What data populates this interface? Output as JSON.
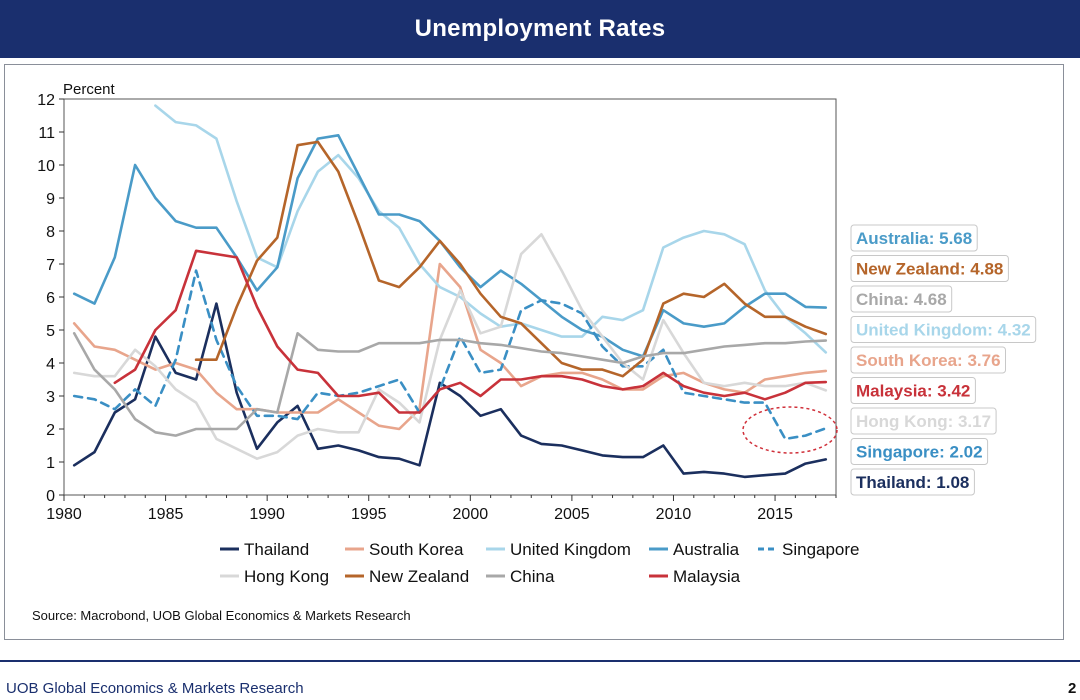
{
  "header": {
    "title": "Unemployment Rates"
  },
  "footer": {
    "text": "UOB Global Economics & Markets Research",
    "page_number": "2"
  },
  "chart_data": {
    "type": "line",
    "title": "Unemployment Rates",
    "ylabel": "Percent",
    "xlabel": "",
    "xlim": [
      1980,
      2018
    ],
    "ylim": [
      0,
      12
    ],
    "x_ticks": [
      "1980",
      "1985",
      "1990",
      "1995",
      "2000",
      "2005",
      "2010",
      "2015"
    ],
    "y_ticks": [
      "0",
      "1",
      "2",
      "3",
      "4",
      "5",
      "6",
      "7",
      "8",
      "9",
      "10",
      "11",
      "12"
    ],
    "source": "Source: Macrobond, UOB Global Economics & Markets Research",
    "series": [
      {
        "name": "Thailand",
        "color": "#1b2f5e",
        "dash": false,
        "x": [
          1980.5,
          1981.5,
          1982.5,
          1983.5,
          1984.5,
          1985.5,
          1986.5,
          1987.5,
          1988.5,
          1989.5,
          1990.5,
          1991.5,
          1992.5,
          1993.5,
          1994.5,
          1995.5,
          1996.5,
          1997.5,
          1998.5,
          1999.5,
          2000.5,
          2001.5,
          2002.5,
          2003.5,
          2004.5,
          2005.5,
          2006.5,
          2007.5,
          2008.5,
          2009.5,
          2010.5,
          2011.5,
          2012.5,
          2013.5,
          2014.5,
          2015.5,
          2016.5,
          2017.5
        ],
        "y": [
          0.9,
          1.3,
          2.5,
          2.9,
          4.8,
          3.7,
          3.5,
          5.8,
          3.1,
          1.4,
          2.2,
          2.7,
          1.4,
          1.5,
          1.35,
          1.15,
          1.1,
          0.9,
          3.4,
          3.0,
          2.4,
          2.6,
          1.8,
          1.55,
          1.5,
          1.35,
          1.2,
          1.15,
          1.15,
          1.5,
          0.65,
          0.7,
          0.65,
          0.55,
          0.6,
          0.65,
          0.95,
          1.08
        ]
      },
      {
        "name": "South Korea",
        "color": "#e8a58c",
        "dash": false,
        "x": [
          1980.5,
          1981.5,
          1982.5,
          1983.5,
          1984.5,
          1985.5,
          1986.5,
          1987.5,
          1988.5,
          1989.5,
          1990.5,
          1991.5,
          1992.5,
          1993.5,
          1994.5,
          1995.5,
          1996.5,
          1997.5,
          1998.5,
          1999.5,
          2000.5,
          2001.5,
          2002.5,
          2003.5,
          2004.5,
          2005.5,
          2006.5,
          2007.5,
          2008.5,
          2009.5,
          2010.5,
          2011.5,
          2012.5,
          2013.5,
          2014.5,
          2015.5,
          2016.5,
          2017.5
        ],
        "y": [
          5.2,
          4.5,
          4.4,
          4.1,
          3.8,
          4.0,
          3.8,
          3.1,
          2.6,
          2.6,
          2.5,
          2.5,
          2.5,
          2.9,
          2.5,
          2.1,
          2.0,
          2.6,
          7.0,
          6.3,
          4.4,
          4.0,
          3.3,
          3.6,
          3.7,
          3.7,
          3.5,
          3.2,
          3.2,
          3.6,
          3.7,
          3.4,
          3.2,
          3.1,
          3.5,
          3.6,
          3.7,
          3.76
        ]
      },
      {
        "name": "United Kingdom",
        "color": "#a8d6ea",
        "dash": false,
        "x": [
          1984.5,
          1985.5,
          1986.5,
          1987.5,
          1988.5,
          1989.5,
          1990.5,
          1991.5,
          1992.5,
          1993.5,
          1994.5,
          1995.5,
          1996.5,
          1997.5,
          1998.5,
          1999.5,
          2000.5,
          2001.5,
          2002.5,
          2003.5,
          2004.5,
          2005.5,
          2006.5,
          2007.5,
          2008.5,
          2009.5,
          2010.5,
          2011.5,
          2012.5,
          2013.5,
          2014.5,
          2015.5,
          2016.5,
          2017.5
        ],
        "y": [
          11.8,
          11.3,
          11.2,
          10.8,
          8.9,
          7.2,
          6.9,
          8.6,
          9.8,
          10.3,
          9.6,
          8.6,
          8.1,
          7.0,
          6.3,
          6.0,
          5.5,
          5.1,
          5.2,
          5.0,
          4.8,
          4.8,
          5.4,
          5.3,
          5.6,
          7.5,
          7.8,
          8.0,
          7.9,
          7.6,
          6.2,
          5.4,
          4.9,
          4.32
        ]
      },
      {
        "name": "Australia",
        "color": "#4a9bc8",
        "dash": false,
        "x": [
          1980.5,
          1981.5,
          1982.5,
          1983.5,
          1984.5,
          1985.5,
          1986.5,
          1987.5,
          1988.5,
          1989.5,
          1990.5,
          1991.5,
          1992.5,
          1993.5,
          1994.5,
          1995.5,
          1996.5,
          1997.5,
          1998.5,
          1999.5,
          2000.5,
          2001.5,
          2002.5,
          2003.5,
          2004.5,
          2005.5,
          2006.5,
          2007.5,
          2008.5,
          2009.5,
          2010.5,
          2011.5,
          2012.5,
          2013.5,
          2014.5,
          2015.5,
          2016.5,
          2017.5
        ],
        "y": [
          6.1,
          5.8,
          7.2,
          10.0,
          9.0,
          8.3,
          8.1,
          8.1,
          7.2,
          6.2,
          6.9,
          9.6,
          10.8,
          10.9,
          9.7,
          8.5,
          8.5,
          8.3,
          7.7,
          6.9,
          6.3,
          6.8,
          6.4,
          5.9,
          5.4,
          5.0,
          4.8,
          4.4,
          4.2,
          5.6,
          5.2,
          5.1,
          5.2,
          5.7,
          6.1,
          6.1,
          5.7,
          5.68
        ]
      },
      {
        "name": "Singapore",
        "color": "#3a8fc4",
        "dash": true,
        "x": [
          1980.5,
          1981.5,
          1982.5,
          1983.5,
          1984.5,
          1985.5,
          1986.5,
          1987.5,
          1988.5,
          1989.5,
          1990.5,
          1991.5,
          1992.5,
          1993.5,
          1994.5,
          1995.5,
          1996.5,
          1997.5,
          1998.5,
          1999.5,
          2000.5,
          2001.5,
          2002.5,
          2003.5,
          2004.5,
          2005.5,
          2006.5,
          2007.5,
          2008.5,
          2009.5,
          2010.5,
          2011.5,
          2012.5,
          2013.5,
          2014.5,
          2015.5,
          2016.5,
          2017.5
        ],
        "y": [
          3.0,
          2.9,
          2.6,
          3.2,
          2.7,
          4.1,
          6.8,
          4.7,
          3.3,
          2.4,
          2.4,
          2.3,
          3.1,
          3.0,
          3.1,
          3.3,
          3.5,
          2.5,
          3.2,
          4.8,
          3.7,
          3.8,
          5.6,
          5.9,
          5.8,
          5.5,
          4.5,
          3.9,
          3.9,
          4.4,
          3.1,
          3.0,
          2.9,
          2.8,
          2.8,
          1.7,
          1.8,
          2.02
        ]
      },
      {
        "name": "Hong Kong",
        "color": "#d8d8d8",
        "dash": false,
        "x": [
          1980.5,
          1981.5,
          1982.5,
          1983.5,
          1984.5,
          1985.5,
          1986.5,
          1987.5,
          1988.5,
          1989.5,
          1990.5,
          1991.5,
          1992.5,
          1993.5,
          1994.5,
          1995.5,
          1996.5,
          1997.5,
          1998.5,
          1999.5,
          2000.5,
          2001.5,
          2002.5,
          2003.5,
          2004.5,
          2005.5,
          2006.5,
          2007.5,
          2008.5,
          2009.5,
          2010.5,
          2011.5,
          2012.5,
          2013.5,
          2014.5,
          2015.5,
          2016.5,
          2017.5
        ],
        "y": [
          3.7,
          3.6,
          3.6,
          4.4,
          3.9,
          3.2,
          2.8,
          1.7,
          1.4,
          1.1,
          1.3,
          1.8,
          2.0,
          1.9,
          1.9,
          3.2,
          2.8,
          2.2,
          4.7,
          6.2,
          4.9,
          5.1,
          7.3,
          7.9,
          6.8,
          5.6,
          4.8,
          4.0,
          3.5,
          5.3,
          4.3,
          3.4,
          3.3,
          3.4,
          3.3,
          3.3,
          3.4,
          3.17
        ]
      },
      {
        "name": "New Zealand",
        "color": "#b5652a",
        "dash": false,
        "x": [
          1986.5,
          1987.5,
          1988.5,
          1989.5,
          1990.5,
          1991.5,
          1992.5,
          1993.5,
          1994.5,
          1995.5,
          1996.5,
          1997.5,
          1998.5,
          1999.5,
          2000.5,
          2001.5,
          2002.5,
          2003.5,
          2004.5,
          2005.5,
          2006.5,
          2007.5,
          2008.5,
          2009.5,
          2010.5,
          2011.5,
          2012.5,
          2013.5,
          2014.5,
          2015.5,
          2016.5,
          2017.5
        ],
        "y": [
          4.1,
          4.1,
          5.7,
          7.1,
          7.8,
          10.6,
          10.7,
          9.8,
          8.2,
          6.5,
          6.3,
          6.9,
          7.7,
          7.0,
          6.1,
          5.4,
          5.2,
          4.6,
          4.0,
          3.8,
          3.8,
          3.6,
          4.1,
          5.8,
          6.1,
          6.0,
          6.4,
          5.8,
          5.4,
          5.4,
          5.1,
          4.88
        ]
      },
      {
        "name": "China",
        "color": "#a8a8a8",
        "dash": false,
        "x": [
          1980.5,
          1981.5,
          1982.5,
          1983.5,
          1984.5,
          1985.5,
          1986.5,
          1987.5,
          1988.5,
          1989.5,
          1990.5,
          1991.5,
          1992.5,
          1993.5,
          1994.5,
          1995.5,
          1996.5,
          1997.5,
          1998.5,
          1999.5,
          2000.5,
          2001.5,
          2002.5,
          2003.5,
          2004.5,
          2005.5,
          2006.5,
          2007.5,
          2008.5,
          2009.5,
          2010.5,
          2011.5,
          2012.5,
          2013.5,
          2014.5,
          2015.5,
          2016.5,
          2017.5
        ],
        "y": [
          4.9,
          3.8,
          3.2,
          2.3,
          1.9,
          1.8,
          2.0,
          2.0,
          2.0,
          2.6,
          2.5,
          4.9,
          4.4,
          4.35,
          4.35,
          4.6,
          4.6,
          4.6,
          4.7,
          4.7,
          4.6,
          4.55,
          4.45,
          4.35,
          4.3,
          4.2,
          4.1,
          4.0,
          4.2,
          4.3,
          4.3,
          4.4,
          4.5,
          4.55,
          4.6,
          4.6,
          4.65,
          4.68
        ]
      },
      {
        "name": "Malaysia",
        "color": "#c8323a",
        "dash": false,
        "x": [
          1982.5,
          1983.5,
          1984.5,
          1985.5,
          1986.5,
          1987.5,
          1988.5,
          1989.5,
          1990.5,
          1991.5,
          1992.5,
          1993.5,
          1994.5,
          1995.5,
          1996.5,
          1997.5,
          1998.5,
          1999.5,
          2000.5,
          2001.5,
          2002.5,
          2003.5,
          2004.5,
          2005.5,
          2006.5,
          2007.5,
          2008.5,
          2009.5,
          2010.5,
          2011.5,
          2012.5,
          2013.5,
          2014.5,
          2015.5,
          2016.5,
          2017.5
        ],
        "y": [
          3.4,
          3.8,
          5.0,
          5.6,
          7.4,
          7.3,
          7.2,
          5.7,
          4.5,
          3.8,
          3.7,
          3.0,
          3.0,
          3.1,
          2.5,
          2.5,
          3.2,
          3.4,
          3.0,
          3.5,
          3.5,
          3.6,
          3.6,
          3.5,
          3.3,
          3.2,
          3.3,
          3.7,
          3.3,
          3.1,
          3.0,
          3.1,
          2.9,
          3.1,
          3.4,
          3.42
        ]
      }
    ],
    "end_labels": [
      {
        "text": "Australia: 5.68",
        "color": "#4a9bc8"
      },
      {
        "text": "New Zealand: 4.88",
        "color": "#b5652a"
      },
      {
        "text": "China: 4.68",
        "color": "#a8a8a8"
      },
      {
        "text": "United Kingdom: 4.32",
        "color": "#a8d6ea"
      },
      {
        "text": "South Korea: 3.76",
        "color": "#e8a58c"
      },
      {
        "text": "Malaysia: 3.42",
        "color": "#c8323a"
      },
      {
        "text": "Hong Kong: 3.17",
        "color": "#d8d8d8"
      },
      {
        "text": "Singapore: 2.02",
        "color": "#3a8fc4"
      },
      {
        "text": "Thailand: 1.08",
        "color": "#1b2f5e"
      }
    ],
    "legend_rows": [
      [
        "Thailand",
        "South Korea",
        "United Kingdom",
        "Australia",
        "Singapore"
      ],
      [
        "Hong Kong",
        "New Zealand",
        "China",
        "Malaysia"
      ]
    ],
    "annotations": [
      "Singapore recent decline circled (dashed red ellipse)"
    ],
    "annotation_color": "#d0303a"
  }
}
